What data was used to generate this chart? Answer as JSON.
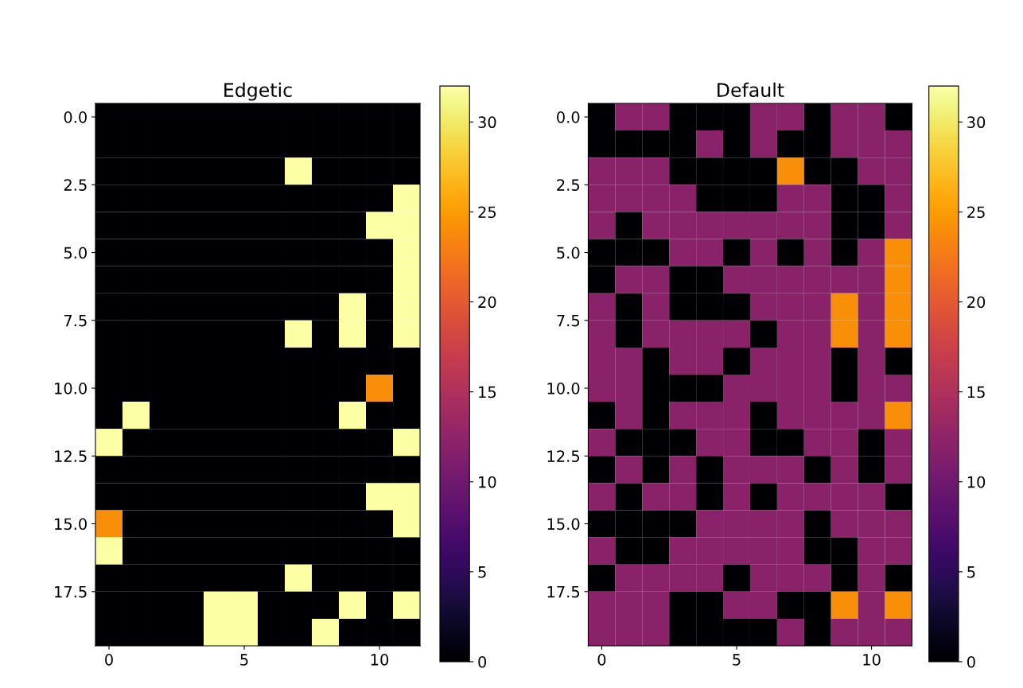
{
  "chart_data": [
    {
      "type": "heatmap",
      "title": "Edgetic",
      "x": [
        0,
        1,
        2,
        3,
        4,
        5,
        6,
        7,
        8,
        9,
        10,
        11
      ],
      "y": [
        0,
        1,
        2,
        3,
        4,
        5,
        6,
        7,
        8,
        9,
        10,
        11,
        12,
        13,
        14,
        15,
        16,
        17,
        18,
        19
      ],
      "cells": [
        [
          0,
          0,
          0,
          0,
          0,
          0,
          0,
          0,
          0,
          0,
          0,
          0
        ],
        [
          0,
          0,
          0,
          0,
          0,
          0,
          0,
          0,
          0,
          0,
          0,
          0
        ],
        [
          0,
          0,
          0,
          0,
          0,
          0,
          0,
          32,
          0,
          0,
          0,
          0
        ],
        [
          0,
          0,
          0,
          0,
          0,
          0,
          0,
          0,
          0,
          0,
          0,
          32
        ],
        [
          0,
          0,
          0,
          0,
          0,
          0,
          0,
          0,
          0,
          0,
          32,
          32
        ],
        [
          0,
          0,
          0,
          0,
          0,
          0,
          0,
          0,
          0,
          0,
          0,
          32
        ],
        [
          0,
          0,
          0,
          0,
          0,
          0,
          0,
          0,
          0,
          0,
          0,
          32
        ],
        [
          0,
          0,
          0,
          0,
          0,
          0,
          0,
          0,
          0,
          32,
          0,
          32
        ],
        [
          0,
          0,
          0,
          0,
          0,
          0,
          0,
          32,
          0,
          32,
          0,
          32
        ],
        [
          0,
          0,
          0,
          0,
          0,
          0,
          0,
          0,
          0,
          0,
          0,
          0
        ],
        [
          0,
          0,
          0,
          0,
          0,
          0,
          0,
          0,
          0,
          0,
          24,
          0
        ],
        [
          0,
          32,
          0,
          0,
          0,
          0,
          0,
          0,
          0,
          32,
          0,
          0
        ],
        [
          32,
          0,
          0,
          0,
          0,
          0,
          0,
          0,
          0,
          0,
          0,
          32
        ],
        [
          0,
          0,
          0,
          0,
          0,
          0,
          0,
          0,
          0,
          0,
          0,
          0
        ],
        [
          0,
          0,
          0,
          0,
          0,
          0,
          0,
          0,
          0,
          0,
          32,
          32
        ],
        [
          24,
          0,
          0,
          0,
          0,
          0,
          0,
          0,
          0,
          0,
          0,
          32
        ],
        [
          32,
          0,
          0,
          0,
          0,
          0,
          0,
          0,
          0,
          0,
          0,
          0
        ],
        [
          0,
          0,
          0,
          0,
          0,
          0,
          0,
          32,
          0,
          0,
          0,
          0
        ],
        [
          0,
          0,
          0,
          0,
          32,
          32,
          0,
          0,
          0,
          32,
          0,
          32
        ],
        [
          0,
          0,
          0,
          0,
          32,
          32,
          0,
          0,
          32,
          0,
          0,
          0
        ]
      ],
      "xlim": [
        -0.5,
        11.5
      ],
      "xticks": [
        0,
        5,
        10
      ],
      "ylim": [
        19.5,
        -0.5
      ],
      "yticks": [
        {
          "value": 0,
          "label": "0.0"
        },
        {
          "value": 2.5,
          "label": "2.5"
        },
        {
          "value": 5,
          "label": "5.0"
        },
        {
          "value": 7.5,
          "label": "7.5"
        },
        {
          "value": 10,
          "label": "10.0"
        },
        {
          "value": 12.5,
          "label": "12.5"
        },
        {
          "value": 15,
          "label": "15.0"
        },
        {
          "value": 17.5,
          "label": "17.5"
        }
      ],
      "clim": [
        0,
        32
      ],
      "cticks": [
        0,
        5,
        10,
        15,
        20,
        25,
        30
      ],
      "grid": false
    },
    {
      "type": "heatmap",
      "title": "Default",
      "x": [
        0,
        1,
        2,
        3,
        4,
        5,
        6,
        7,
        8,
        9,
        10,
        11
      ],
      "y": [
        0,
        1,
        2,
        3,
        4,
        5,
        6,
        7,
        8,
        9,
        10,
        11,
        12,
        13,
        14,
        15,
        16,
        17,
        18,
        19
      ],
      "cells": [
        [
          0,
          12,
          12,
          0,
          0,
          0,
          12,
          12,
          0,
          12,
          12,
          0
        ],
        [
          0,
          0,
          0,
          0,
          12,
          0,
          12,
          0,
          0,
          12,
          12,
          12
        ],
        [
          12,
          12,
          12,
          0,
          0,
          0,
          0,
          24,
          0,
          0,
          12,
          12
        ],
        [
          12,
          12,
          12,
          12,
          0,
          0,
          0,
          12,
          12,
          0,
          0,
          12
        ],
        [
          12,
          0,
          12,
          12,
          12,
          12,
          12,
          12,
          12,
          0,
          0,
          12
        ],
        [
          0,
          0,
          0,
          12,
          12,
          0,
          12,
          0,
          12,
          0,
          12,
          24
        ],
        [
          0,
          12,
          12,
          0,
          0,
          12,
          12,
          12,
          12,
          12,
          12,
          24
        ],
        [
          12,
          0,
          12,
          0,
          0,
          0,
          12,
          12,
          12,
          24,
          12,
          24
        ],
        [
          12,
          0,
          12,
          12,
          12,
          12,
          0,
          12,
          12,
          24,
          12,
          24
        ],
        [
          12,
          12,
          0,
          12,
          12,
          0,
          12,
          12,
          12,
          0,
          12,
          0
        ],
        [
          12,
          12,
          0,
          0,
          0,
          12,
          12,
          12,
          12,
          0,
          12,
          12
        ],
        [
          0,
          12,
          0,
          12,
          12,
          12,
          0,
          12,
          12,
          12,
          12,
          24
        ],
        [
          12,
          0,
          0,
          0,
          12,
          12,
          0,
          0,
          12,
          12,
          0,
          12
        ],
        [
          0,
          12,
          0,
          12,
          0,
          12,
          12,
          12,
          0,
          12,
          0,
          12
        ],
        [
          12,
          0,
          12,
          12,
          0,
          12,
          0,
          12,
          12,
          12,
          12,
          0
        ],
        [
          0,
          0,
          0,
          0,
          12,
          12,
          12,
          12,
          0,
          12,
          12,
          12
        ],
        [
          12,
          0,
          0,
          12,
          12,
          12,
          12,
          12,
          0,
          0,
          12,
          12
        ],
        [
          0,
          12,
          12,
          12,
          12,
          0,
          12,
          12,
          12,
          0,
          12,
          0
        ],
        [
          12,
          12,
          12,
          0,
          0,
          12,
          12,
          0,
          0,
          24,
          12,
          24
        ],
        [
          12,
          12,
          12,
          0,
          0,
          0,
          0,
          12,
          0,
          12,
          12,
          12
        ]
      ],
      "xlim": [
        -0.5,
        11.5
      ],
      "xticks": [
        0,
        5,
        10
      ],
      "ylim": [
        19.5,
        -0.5
      ],
      "yticks": [
        {
          "value": 0,
          "label": "0.0"
        },
        {
          "value": 2.5,
          "label": "2.5"
        },
        {
          "value": 5,
          "label": "5.0"
        },
        {
          "value": 7.5,
          "label": "7.5"
        },
        {
          "value": 10,
          "label": "10.0"
        },
        {
          "value": 12.5,
          "label": "12.5"
        },
        {
          "value": 15,
          "label": "15.0"
        },
        {
          "value": 17.5,
          "label": "17.5"
        }
      ],
      "clim": [
        0,
        32
      ],
      "cticks": [
        0,
        5,
        10,
        15,
        20,
        25,
        30
      ],
      "grid": false
    }
  ]
}
